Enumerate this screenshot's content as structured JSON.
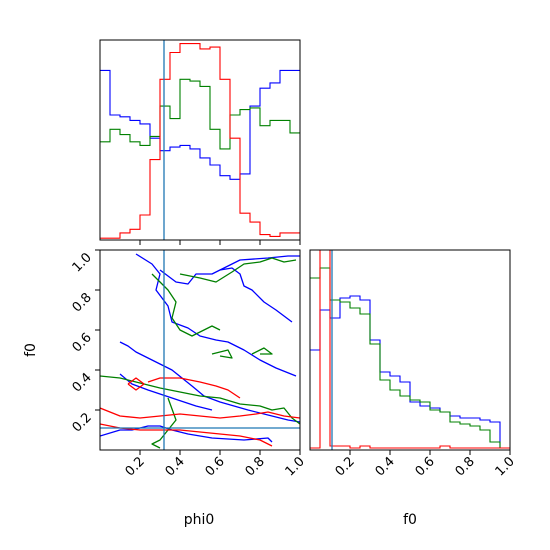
{
  "chart_data": [
    {
      "type": "histogram",
      "panel": "phi0-marginal",
      "x_range": [
        0,
        1
      ],
      "bins": 20,
      "truth": 0.32,
      "series": [
        {
          "color": "#0000ff",
          "values": [
            0.95,
            0.7,
            0.69,
            0.67,
            0.65,
            0.57,
            0.5,
            0.52,
            0.53,
            0.51,
            0.46,
            0.42,
            0.36,
            0.34,
            0.37,
            0.75,
            0.85,
            0.88,
            0.95,
            0.95
          ]
        },
        {
          "color": "#008000",
          "values": [
            0.55,
            0.62,
            0.59,
            0.55,
            0.53,
            0.58,
            0.75,
            0.68,
            0.9,
            0.89,
            0.86,
            0.62,
            0.51,
            0.7,
            0.73,
            0.74,
            0.64,
            0.67,
            0.67,
            0.6
          ]
        },
        {
          "color": "#ff0000",
          "values": [
            0.01,
            0.01,
            0.04,
            0.06,
            0.14,
            0.45,
            0.9,
            1.05,
            1.1,
            1.1,
            1.07,
            1.08,
            0.9,
            0.57,
            0.15,
            0.1,
            0.03,
            0.02,
            0.04,
            0.04
          ]
        }
      ]
    },
    {
      "type": "contour",
      "panel": "phi0-f0-joint",
      "xlabel": "phi0",
      "ylabel": "f0",
      "xlim": [
        0,
        1
      ],
      "ylim": [
        0,
        1
      ],
      "truth": {
        "x": 0.32,
        "y": 0.11
      },
      "xticks": [
        "0.2",
        "0.4",
        "0.6",
        "0.8",
        "1.0"
      ],
      "yticks": [
        "0.2",
        "0.4",
        "0.6",
        "0.8",
        "1.0"
      ],
      "series": [
        {
          "color": "#0000ff",
          "paths": [
            [
              [
                0.1,
                0.54
              ],
              [
                0.14,
                0.52
              ],
              [
                0.18,
                0.49
              ],
              [
                0.26,
                0.45
              ],
              [
                0.36,
                0.4
              ],
              [
                0.46,
                0.32
              ],
              [
                0.52,
                0.27
              ],
              [
                0.6,
                0.24
              ],
              [
                0.74,
                0.2
              ],
              [
                0.86,
                0.17
              ],
              [
                0.94,
                0.15
              ],
              [
                1.0,
                0.14
              ]
            ],
            [
              [
                0.1,
                0.38
              ],
              [
                0.16,
                0.33
              ],
              [
                0.24,
                0.3
              ],
              [
                0.36,
                0.26
              ],
              [
                0.48,
                0.22
              ],
              [
                0.56,
                0.2
              ]
            ],
            [
              [
                0.0,
                0.07
              ],
              [
                0.1,
                0.1
              ],
              [
                0.16,
                0.1
              ],
              [
                0.24,
                0.12
              ],
              [
                0.3,
                0.12
              ],
              [
                0.36,
                0.1
              ],
              [
                0.44,
                0.08
              ],
              [
                0.56,
                0.06
              ],
              [
                0.72,
                0.05
              ],
              [
                0.84,
                0.06
              ],
              [
                0.86,
                0.04
              ]
            ],
            [
              [
                0.18,
                0.98
              ],
              [
                0.26,
                0.93
              ],
              [
                0.3,
                0.88
              ],
              [
                0.28,
                0.8
              ],
              [
                0.34,
                0.72
              ],
              [
                0.36,
                0.64
              ],
              [
                0.44,
                0.61
              ],
              [
                0.5,
                0.57
              ],
              [
                0.58,
                0.55
              ],
              [
                0.64,
                0.54
              ],
              [
                0.72,
                0.5
              ],
              [
                0.8,
                0.45
              ],
              [
                0.88,
                0.41
              ],
              [
                0.98,
                0.37
              ]
            ],
            [
              [
                0.3,
                0.9
              ],
              [
                0.38,
                0.84
              ],
              [
                0.44,
                0.83
              ],
              [
                0.48,
                0.88
              ],
              [
                0.56,
                0.88
              ],
              [
                0.6,
                0.9
              ],
              [
                0.66,
                0.91
              ],
              [
                0.7,
                0.88
              ],
              [
                0.72,
                0.82
              ],
              [
                0.76,
                0.8
              ],
              [
                0.82,
                0.74
              ],
              [
                0.88,
                0.7
              ],
              [
                0.92,
                0.67
              ],
              [
                0.96,
                0.64
              ]
            ],
            [
              [
                0.6,
                0.9
              ],
              [
                0.7,
                0.95
              ],
              [
                0.84,
                0.96
              ],
              [
                0.94,
                0.97
              ],
              [
                1.0,
                0.97
              ]
            ]
          ]
        },
        {
          "color": "#008000",
          "paths": [
            [
              [
                0.0,
                0.37
              ],
              [
                0.1,
                0.36
              ],
              [
                0.18,
                0.34
              ],
              [
                0.3,
                0.31
              ],
              [
                0.4,
                0.29
              ],
              [
                0.5,
                0.27
              ],
              [
                0.6,
                0.26
              ],
              [
                0.7,
                0.23
              ],
              [
                0.8,
                0.22
              ],
              [
                0.86,
                0.2
              ],
              [
                0.92,
                0.21
              ],
              [
                0.96,
                0.16
              ],
              [
                1.0,
                0.13
              ]
            ],
            [
              [
                0.34,
                0.26
              ],
              [
                0.38,
                0.15
              ],
              [
                0.34,
                0.1
              ],
              [
                0.3,
                0.05
              ],
              [
                0.26,
                0.03
              ],
              [
                0.3,
                0.01
              ]
            ],
            [
              [
                0.26,
                0.88
              ],
              [
                0.3,
                0.84
              ],
              [
                0.34,
                0.8
              ],
              [
                0.38,
                0.74
              ],
              [
                0.36,
                0.66
              ],
              [
                0.4,
                0.6
              ],
              [
                0.46,
                0.57
              ],
              [
                0.52,
                0.6
              ],
              [
                0.56,
                0.62
              ],
              [
                0.6,
                0.6
              ]
            ],
            [
              [
                0.4,
                0.88
              ],
              [
                0.5,
                0.86
              ],
              [
                0.58,
                0.84
              ],
              [
                0.66,
                0.89
              ],
              [
                0.72,
                0.93
              ],
              [
                0.8,
                0.94
              ],
              [
                0.86,
                0.96
              ],
              [
                0.92,
                0.94
              ],
              [
                0.98,
                0.95
              ]
            ],
            [
              [
                0.56,
                0.48
              ],
              [
                0.64,
                0.5
              ],
              [
                0.66,
                0.46
              ],
              [
                0.6,
                0.47
              ]
            ],
            [
              [
                0.76,
                0.48
              ],
              [
                0.82,
                0.51
              ],
              [
                0.86,
                0.48
              ],
              [
                0.8,
                0.48
              ]
            ]
          ]
        },
        {
          "color": "#ff0000",
          "paths": [
            [
              [
                0.0,
                0.21
              ],
              [
                0.1,
                0.17
              ],
              [
                0.2,
                0.16
              ],
              [
                0.3,
                0.17
              ],
              [
                0.4,
                0.18
              ],
              [
                0.5,
                0.17
              ],
              [
                0.6,
                0.16
              ],
              [
                0.7,
                0.17
              ],
              [
                0.78,
                0.18
              ],
              [
                0.84,
                0.19
              ],
              [
                0.92,
                0.17
              ],
              [
                1.0,
                0.16
              ]
            ],
            [
              [
                0.0,
                0.13
              ],
              [
                0.1,
                0.11
              ],
              [
                0.2,
                0.1
              ],
              [
                0.3,
                0.1
              ],
              [
                0.4,
                0.1
              ],
              [
                0.5,
                0.09
              ],
              [
                0.6,
                0.08
              ],
              [
                0.7,
                0.07
              ],
              [
                0.8,
                0.05
              ],
              [
                0.86,
                0.02
              ]
            ],
            [
              [
                0.24,
                0.34
              ],
              [
                0.3,
                0.36
              ],
              [
                0.4,
                0.36
              ],
              [
                0.5,
                0.34
              ],
              [
                0.58,
                0.32
              ],
              [
                0.64,
                0.3
              ],
              [
                0.7,
                0.26
              ]
            ],
            [
              [
                0.14,
                0.33
              ],
              [
                0.18,
                0.36
              ],
              [
                0.22,
                0.33
              ],
              [
                0.18,
                0.3
              ],
              [
                0.14,
                0.33
              ]
            ]
          ]
        }
      ]
    },
    {
      "type": "histogram",
      "panel": "f0-marginal",
      "xlabel": "f0",
      "x_range": [
        0,
        1
      ],
      "bins": 20,
      "truth": 0.11,
      "xticks": [
        "0.2",
        "0.4",
        "0.6",
        "0.8",
        "1.0"
      ],
      "series": [
        {
          "color": "#0000ff",
          "values": [
            0.5,
            0.7,
            0.66,
            0.76,
            0.77,
            0.75,
            0.55,
            0.39,
            0.37,
            0.34,
            0.24,
            0.22,
            0.21,
            0.19,
            0.17,
            0.16,
            0.16,
            0.15,
            0.14,
            0.01
          ]
        },
        {
          "color": "#008000",
          "values": [
            0.86,
            0.91,
            0.75,
            0.74,
            0.71,
            0.68,
            0.53,
            0.35,
            0.3,
            0.27,
            0.25,
            0.24,
            0.2,
            0.19,
            0.14,
            0.13,
            0.12,
            0.1,
            0.04,
            0.01
          ]
        },
        {
          "color": "#ff0000",
          "values": [
            0.01,
            1.2,
            0.02,
            0.02,
            0.01,
            0.02,
            0.01,
            0.01,
            0.01,
            0.01,
            0.01,
            0.01,
            0.01,
            0.02,
            0.01,
            0.01,
            0.01,
            0.01,
            0.01,
            0.01
          ]
        }
      ]
    }
  ]
}
